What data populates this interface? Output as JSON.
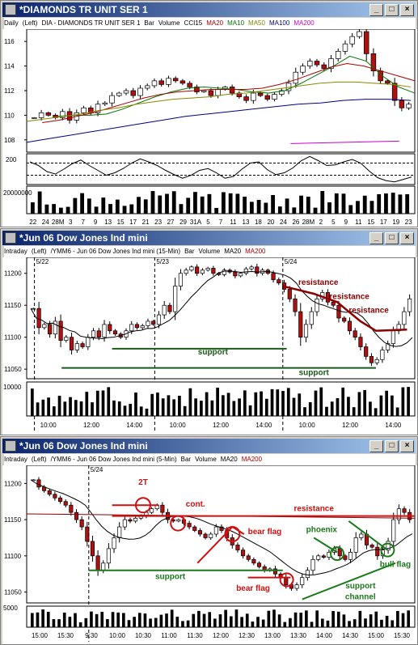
{
  "windows": [
    {
      "title": "*DIAMONDS TR UNIT SER 1",
      "hdr": [
        {
          "t": "Daily",
          "c": "#000"
        },
        {
          "t": "(Left)",
          "c": "#000"
        },
        {
          "t": "DIA - DIAMONDS TR UNIT SER 1",
          "c": "#000"
        },
        {
          "t": "Bar",
          "c": "#000"
        },
        {
          "t": "Volume",
          "c": "#000"
        },
        {
          "t": "CCI15",
          "c": "#000"
        },
        {
          "t": "MA20",
          "c": "#aa0000"
        },
        {
          "t": "MA10",
          "c": "#007700"
        },
        {
          "t": "MA50",
          "c": "#888800"
        },
        {
          "t": "MA100",
          "c": "#000088"
        },
        {
          "t": "MA200",
          "c": "#cc00cc"
        }
      ]
    },
    {
      "title": "*Jun 06  Dow Jones Ind mini",
      "hdr": [
        {
          "t": "Intraday",
          "c": "#000"
        },
        {
          "t": "(Left)",
          "c": "#000"
        },
        {
          "t": "/YMM6 - Jun 06  Dow Jones Ind mini  (15-Min)",
          "c": "#000"
        },
        {
          "t": "Bar",
          "c": "#000"
        },
        {
          "t": "Volume",
          "c": "#000"
        },
        {
          "t": "MA20",
          "c": "#000"
        },
        {
          "t": "MA200",
          "c": "#aa0000"
        }
      ]
    },
    {
      "title": "*Jun 06  Dow Jones Ind mini",
      "hdr": [
        {
          "t": "Intraday",
          "c": "#000"
        },
        {
          "t": "(Left)",
          "c": "#000"
        },
        {
          "t": "/YMM6 - Jun 06  Dow Jones Ind mini  (5-Min)",
          "c": "#000"
        },
        {
          "t": "Bar",
          "c": "#000"
        },
        {
          "t": "Volume",
          "c": "#000"
        },
        {
          "t": "MA20",
          "c": "#000"
        },
        {
          "t": "MA200",
          "c": "#aa0000"
        }
      ]
    }
  ],
  "icons": [
    "app-icon",
    "minimize-icon",
    "maximize-icon",
    "close-icon"
  ],
  "chart_data": [
    {
      "type": "bar",
      "subtype": "candlestick",
      "title": "DIA - DIAMONDS TR UNIT SER 1 (Daily)",
      "ylim": [
        107,
        117
      ],
      "y_ticks": [
        108,
        110,
        112,
        114,
        116
      ],
      "x_ticks": [
        "22",
        "24",
        "28M",
        "3",
        "7",
        "9",
        "13",
        "15",
        "17",
        "21",
        "23",
        "27",
        "29",
        "31A",
        "5",
        "7",
        "11",
        "13",
        "18",
        "20",
        "24",
        "26",
        "28M",
        "2",
        "5",
        "9",
        "11",
        "15",
        "17",
        "19",
        "23"
      ],
      "close": [
        109.8,
        110.2,
        110,
        109.8,
        110.3,
        109.6,
        110.2,
        110.6,
        110.2,
        110.9,
        111,
        111.6,
        111.8,
        112,
        111.6,
        112.2,
        112.4,
        112.8,
        112.5,
        113,
        112.8,
        112.6,
        112.3,
        111.9,
        112,
        111.6,
        112.1,
        112.3,
        111.8,
        111.5,
        111.2,
        111.8,
        111.6,
        111.3,
        111.7,
        112,
        112.6,
        113.5,
        114,
        114.4,
        114.1,
        113.8,
        114.6,
        115.2,
        115.8,
        116.4,
        116.8,
        115,
        113.6,
        112.8,
        112.6,
        111.2,
        110.6,
        110.9
      ],
      "ma": [
        {
          "name": "MA10",
          "color": "#007700",
          "values": [
            109.9,
            110,
            110,
            110.1,
            110.5,
            111,
            111.5,
            111.9,
            112.2,
            112.3,
            112.2,
            112.1,
            111.9,
            111.8,
            112,
            112.6,
            113.3,
            114,
            114.8,
            114.4,
            113.2,
            112.3,
            111.8
          ]
        },
        {
          "name": "MA20",
          "color": "#aa0000",
          "values": [
            109.4,
            109.6,
            109.9,
            110.2,
            110.6,
            111,
            111.4,
            111.7,
            111.9,
            112,
            112.1,
            112.1,
            112.1,
            112.2,
            112.5,
            112.9,
            113.4,
            113.9,
            114.2,
            114,
            113.6,
            113.2,
            112.8
          ]
        },
        {
          "name": "MA50",
          "color": "#888800",
          "values": [
            109.5,
            109.7,
            109.9,
            110.1,
            110.4,
            110.6,
            110.9,
            111.1,
            111.3,
            111.4,
            111.5,
            111.7,
            111.8,
            112,
            112.2,
            112.4,
            112.6,
            112.7,
            112.7,
            112.6,
            112.5,
            112.3
          ]
        },
        {
          "name": "MA100",
          "color": "#000088",
          "values": [
            107.8,
            108.1,
            108.4,
            108.7,
            109,
            109.3,
            109.6,
            109.9,
            110.1,
            110.3,
            110.5,
            110.7,
            110.9,
            111,
            111.2,
            111.3,
            111.3,
            111.2
          ]
        },
        {
          "name": "MA200",
          "color": "#cc00cc",
          "values": [
            107.7,
            107.75,
            107.8,
            107.85,
            107.9
          ]
        }
      ],
      "cci": {
        "label": "200",
        "values": [
          120,
          60,
          -40,
          -80,
          0,
          90,
          150,
          60,
          -20,
          -100,
          -60,
          10,
          100,
          170,
          120,
          60,
          -20,
          -90,
          -150,
          -100,
          -20,
          10,
          -60,
          -150,
          -120,
          0,
          100,
          120,
          -10,
          -90,
          -60,
          20,
          140,
          210,
          140,
          60,
          70,
          120,
          160,
          100,
          -30,
          -140,
          -190,
          -210,
          -170,
          -130
        ]
      },
      "volume_label": "20000000"
    },
    {
      "type": "bar",
      "subtype": "ohlc",
      "title": "/YMM6 - Jun 06 Dow Jones Ind mini (15-Min)",
      "ylim": [
        11035,
        11225
      ],
      "y_ticks": [
        11050,
        11100,
        11150,
        11200
      ],
      "x_ticks": [
        "10:00",
        "12:00",
        "14:00",
        "10:00",
        "12:00",
        "14:00",
        "10:00",
        "12:00",
        "14:00"
      ],
      "session_labels": [
        "5/22",
        "5/23",
        "5/24"
      ],
      "close": [
        11145,
        11115,
        11120,
        11105,
        11125,
        11095,
        11100,
        11080,
        11090,
        11085,
        11100,
        11110,
        11100,
        11120,
        11110,
        11105,
        11100,
        11110,
        11120,
        11115,
        11118,
        11125,
        11120,
        11135,
        11150,
        11140,
        11180,
        11200,
        11205,
        11210,
        11200,
        11205,
        11208,
        11200,
        11198,
        11205,
        11202,
        11196,
        11200,
        11207,
        11210,
        11200,
        11205,
        11200,
        11190,
        11185,
        11175,
        11160,
        11140,
        11100,
        11120,
        11140,
        11160,
        11170,
        11155,
        11150,
        11130,
        11125,
        11110,
        11100,
        11085,
        11070,
        11060,
        11065,
        11080,
        11090,
        11110,
        11120,
        11140,
        11160
      ],
      "annotations": [
        "resistance",
        "resistance",
        "resistance",
        "support",
        "support"
      ],
      "volume_label": "10000"
    },
    {
      "type": "bar",
      "subtype": "ohlc",
      "title": "/YMM6 - Jun 06 Dow Jones Ind mini (5-Min)",
      "ylim": [
        11035,
        11225
      ],
      "y_ticks": [
        11050,
        11100,
        11150,
        11200
      ],
      "x_ticks": [
        "15:00",
        "15:30",
        "9:30",
        "10:00",
        "10:30",
        "11:00",
        "11:30",
        "12:00",
        "12:30",
        "13:00",
        "13:30",
        "14:00",
        "14:30",
        "15:00",
        "15:30"
      ],
      "session_labels": [
        "5/24"
      ],
      "close": [
        11205,
        11195,
        11190,
        11185,
        11180,
        11175,
        11170,
        11160,
        11150,
        11140,
        11120,
        11100,
        11080,
        11090,
        11110,
        11125,
        11140,
        11150,
        11148,
        11152,
        11155,
        11160,
        11165,
        11170,
        11160,
        11150,
        11148,
        11150,
        11145,
        11140,
        11135,
        11130,
        11125,
        11130,
        11140,
        11135,
        11125,
        11115,
        11108,
        11100,
        11095,
        11090,
        11085,
        11080,
        11082,
        11075,
        11070,
        11060,
        11055,
        11060,
        11070,
        11080,
        11095,
        11100,
        11098,
        11105,
        11110,
        11100,
        11095,
        11105,
        11125,
        11130,
        11115,
        11112,
        11100,
        11108,
        11120,
        11150,
        11165,
        11160,
        11150
      ],
      "annotations": [
        "2T",
        "cont.",
        "resistance",
        "bear flag",
        "bear flag",
        "support",
        "phoenix",
        "support",
        "channel",
        "bull flag"
      ],
      "volume_label": "5000"
    }
  ]
}
